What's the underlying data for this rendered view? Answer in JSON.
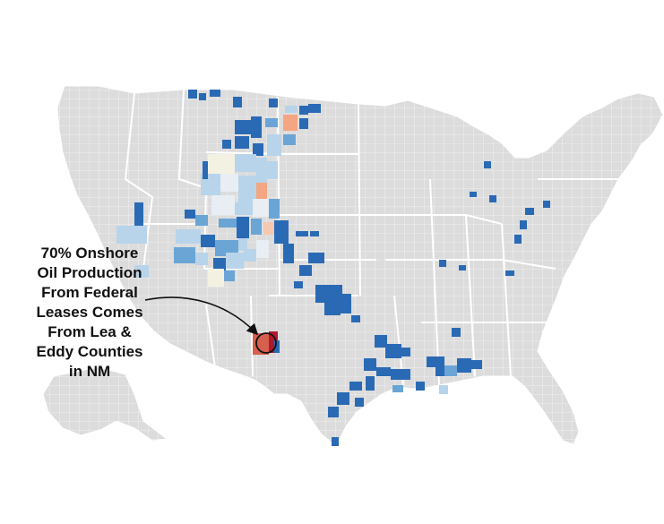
{
  "annotation": {
    "lines": [
      "70% Onshore",
      "Oil Production",
      "From Federal",
      "Leases Comes",
      "From Lea &",
      "Eddy Counties",
      "in NM"
    ]
  },
  "colors": {
    "land": "#dcdcdc",
    "county_border": "#ffffff",
    "dark_blue": "#2a6ab5",
    "mid_blue": "#6aa5d6",
    "light_blue": "#b8d4ea",
    "pale": "#f3f1e2",
    "salmon": "#f4a582",
    "red": "#d6604d",
    "dark_red": "#b2182b",
    "arrow": "#111111"
  }
}
